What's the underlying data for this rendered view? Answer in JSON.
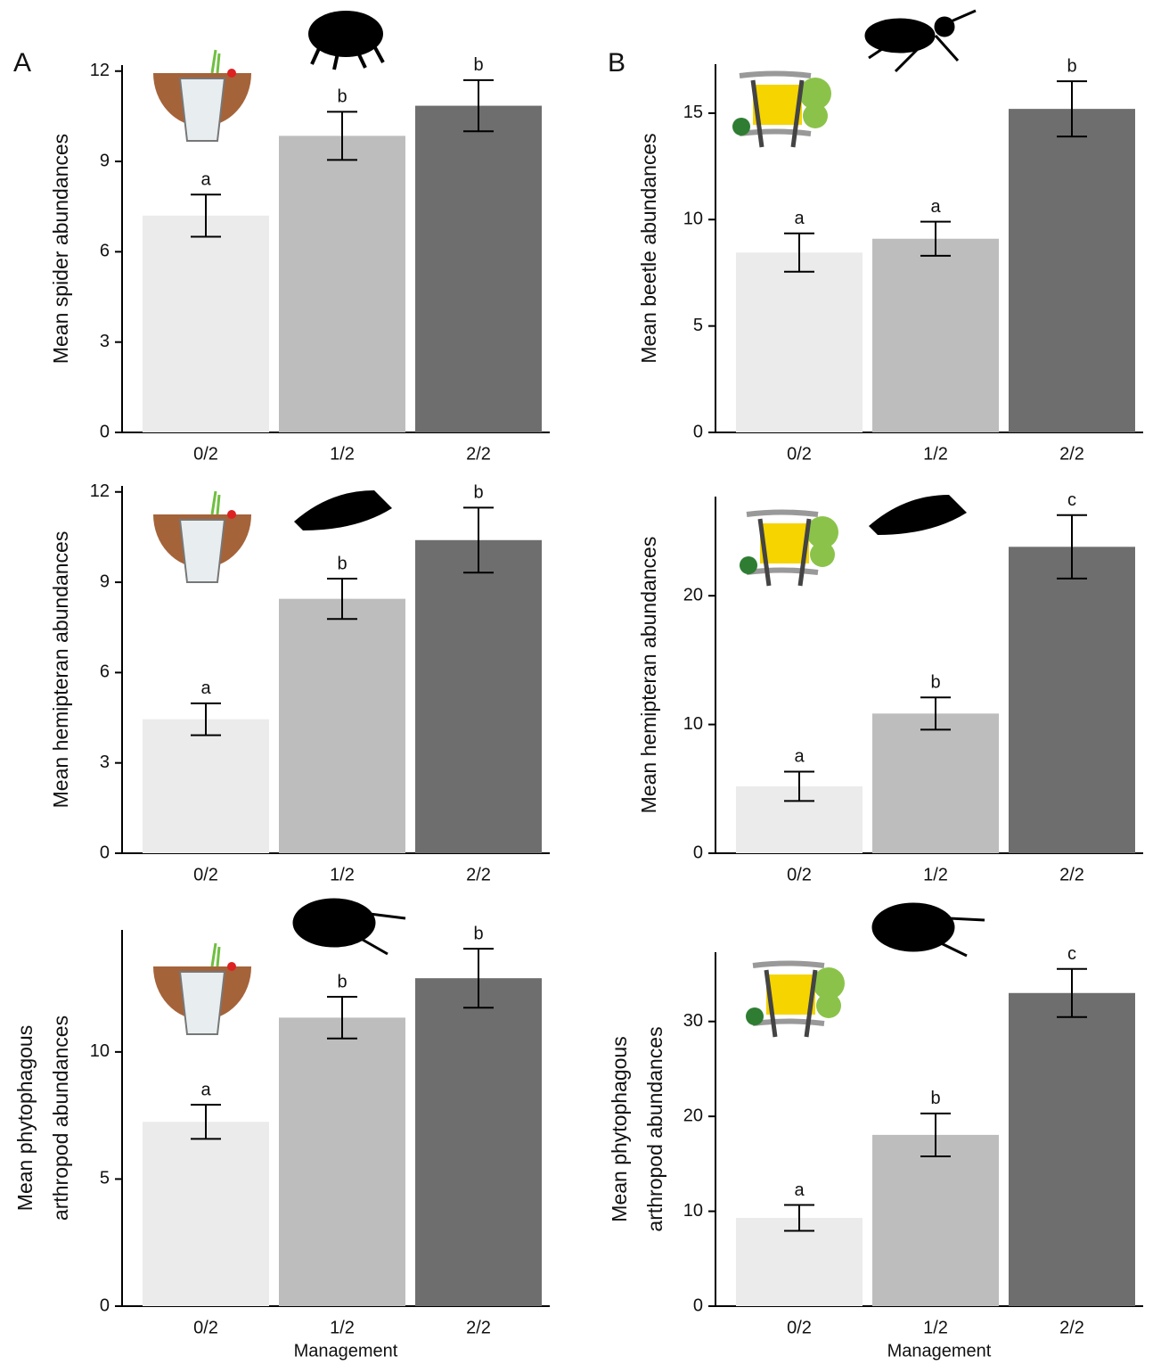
{
  "chart_data": [
    {
      "type": "bar",
      "panel_label": "A",
      "ylabel": [
        "Mean spider abundances"
      ],
      "categories": [
        "0/2",
        "1/2",
        "2/2"
      ],
      "values": [
        7.2,
        9.85,
        10.85
      ],
      "errors": [
        0.7,
        0.8,
        0.85
      ],
      "letters": [
        "a",
        "b",
        "b"
      ],
      "colors": [
        "#ebebeb",
        "#bdbdbd",
        "#6e6e6e"
      ],
      "ylim": [
        0,
        12.2
      ],
      "yticks": [
        0,
        3,
        6,
        9,
        12
      ]
    },
    {
      "type": "bar",
      "ylabel": [
        "Mean hemipteran abundances"
      ],
      "categories": [
        "0/2",
        "1/2",
        "2/2"
      ],
      "values": [
        4.45,
        8.45,
        10.4
      ],
      "errors": [
        0.53,
        0.67,
        1.08
      ],
      "letters": [
        "a",
        "b",
        "b"
      ],
      "colors": [
        "#ebebeb",
        "#bdbdbd",
        "#6e6e6e"
      ],
      "ylim": [
        0,
        12.2
      ],
      "yticks": [
        0,
        3,
        6,
        9,
        12
      ]
    },
    {
      "type": "bar",
      "ylabel": [
        "Mean phytophagous",
        "arthropod abundances"
      ],
      "xlabel": "Management",
      "categories": [
        "0/2",
        "1/2",
        "2/2"
      ],
      "values": [
        7.25,
        11.35,
        12.9
      ],
      "errors": [
        0.67,
        0.82,
        1.16
      ],
      "letters": [
        "a",
        "b",
        "b"
      ],
      "colors": [
        "#ebebeb",
        "#bdbdbd",
        "#6e6e6e"
      ],
      "ylim": [
        0,
        14.8
      ],
      "yticks": [
        0,
        5,
        10
      ]
    },
    {
      "type": "bar",
      "panel_label": "B",
      "ylabel": [
        "Mean beetle abundances"
      ],
      "categories": [
        "0/2",
        "1/2",
        "2/2"
      ],
      "values": [
        8.45,
        9.1,
        15.2
      ],
      "errors": [
        0.9,
        0.8,
        1.3
      ],
      "letters": [
        "a",
        "a",
        "b"
      ],
      "colors": [
        "#ebebeb",
        "#bdbdbd",
        "#6e6e6e"
      ],
      "ylim": [
        0,
        17.3
      ],
      "yticks": [
        0,
        5,
        10,
        15
      ]
    },
    {
      "type": "bar",
      "ylabel": [
        "Mean hemipteran abundances"
      ],
      "categories": [
        "0/2",
        "1/2",
        "2/2"
      ],
      "values": [
        5.2,
        10.85,
        23.8
      ],
      "errors": [
        1.14,
        1.25,
        2.46
      ],
      "letters": [
        "a",
        "b",
        "c"
      ],
      "colors": [
        "#ebebeb",
        "#bdbdbd",
        "#6e6e6e"
      ],
      "ylim": [
        0,
        27.7
      ],
      "yticks": [
        0,
        10,
        20
      ]
    },
    {
      "type": "bar",
      "ylabel": [
        "Mean phytophagous",
        "arthropod abundances"
      ],
      "xlabel": "Management",
      "categories": [
        "0/2",
        "1/2",
        "2/2"
      ],
      "values": [
        9.3,
        18.05,
        33.0
      ],
      "errors": [
        1.36,
        2.26,
        2.54
      ],
      "letters": [
        "a",
        "b",
        "c"
      ],
      "colors": [
        "#ebebeb",
        "#bdbdbd",
        "#6e6e6e"
      ],
      "ylim": [
        0,
        37.3
      ],
      "yticks": [
        0,
        10,
        20,
        30
      ]
    }
  ]
}
